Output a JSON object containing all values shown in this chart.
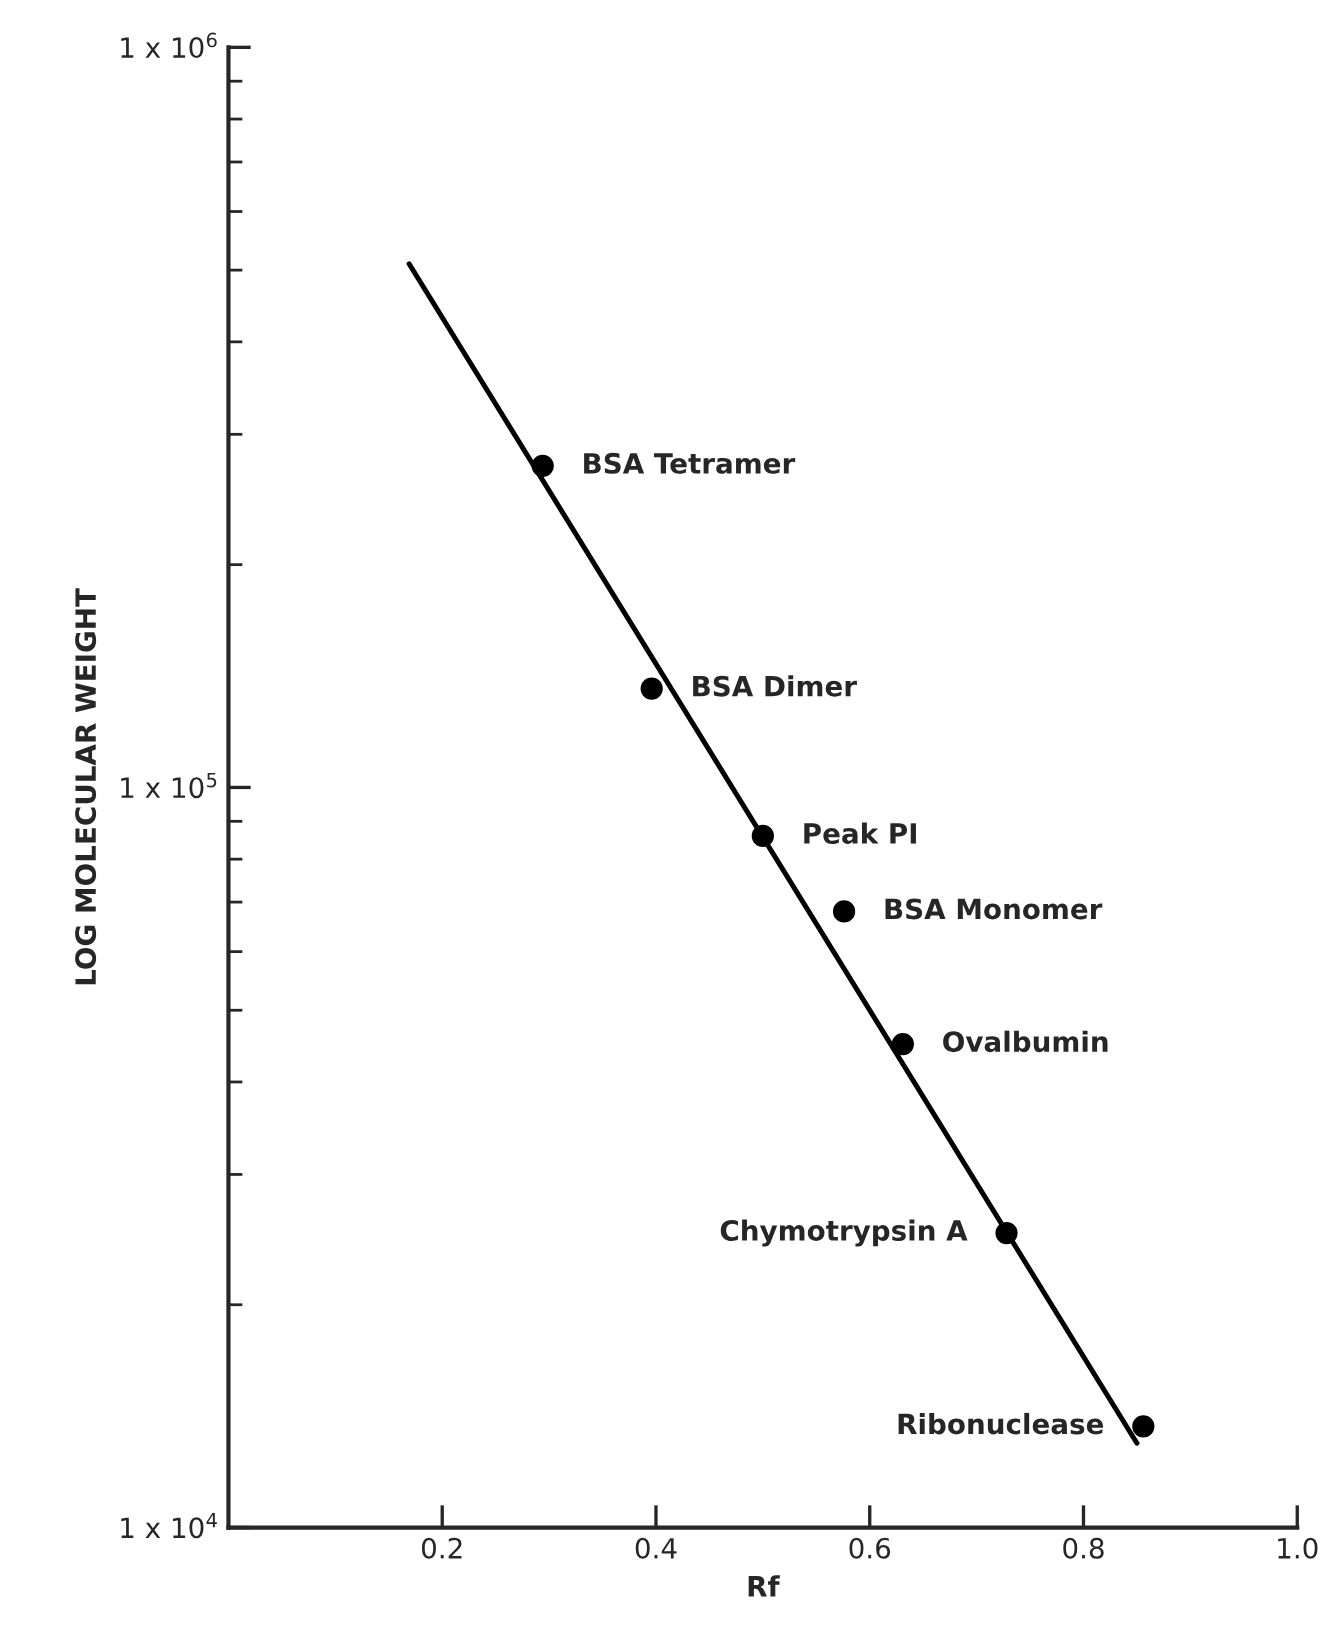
{
  "chart_data": {
    "type": "scatter",
    "xlabel": "Rf",
    "ylabel": "LOG MOLECULAR WEIGHT",
    "log": "y",
    "grid": false,
    "marker": "circle",
    "xlim": [
      0,
      1.0
    ],
    "xticks": [
      0.2,
      0.4,
      0.6,
      0.8,
      {
        "value": 1.0,
        "label": "1.0"
      }
    ],
    "ylim": [
      10000,
      1000000
    ],
    "yticks": [
      {
        "value": 10000,
        "label": "1 x 10$^{4}$"
      },
      {
        "value": 100000,
        "label": "1 x 10$^{5}$"
      },
      {
        "value": 1000000,
        "label": "1 x 10$^{6}$"
      }
    ],
    "series": [
      {
        "color": "#000000",
        "x": [
          0.294,
          0.396,
          0.5,
          0.576,
          0.631,
          0.728,
          0.856
        ],
        "values": [
          272000,
          136000,
          86000,
          68000,
          45000,
          25000,
          13700
        ]
      },
      {
        "type": "line",
        "color": "#000000",
        "marker": "none",
        "line_style": "solid",
        "x": [
          0.169,
          0.85
        ],
        "values": [
          510000,
          13000
        ]
      }
    ],
    "annotations": [
      {
        "text": "BSA Tetramer",
        "x": 0.294,
        "y": 272000
      },
      {
        "text": "BSA Dimer",
        "x": 0.396,
        "y": 136000
      },
      {
        "text": "Peak PI",
        "x": 0.5,
        "y": 86000
      },
      {
        "text": "BSA Monomer",
        "x": 0.576,
        "y": 68000
      },
      {
        "text": "Ovalbumin",
        "x": 0.631,
        "y": 45000
      },
      {
        "text": "Chymotrypsin A",
        "x": 0.728,
        "y": 25000
      },
      {
        "text": "Ribonuclease",
        "x": 0.856,
        "y": 13700
      }
    ]
  }
}
